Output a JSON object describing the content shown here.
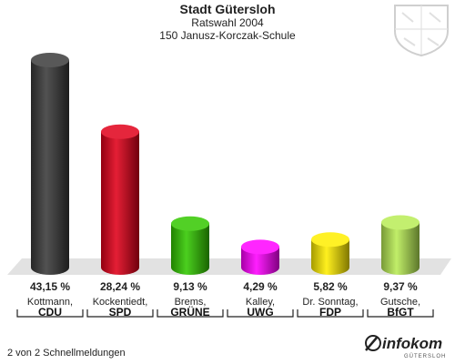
{
  "header": {
    "title": "Stadt Gütersloh",
    "subtitle": "Ratswahl 2004",
    "district": "150 Janusz-Korczak-Schule"
  },
  "footer": {
    "status": "2 von 2 Schnellmeldungen"
  },
  "logo": {
    "brand": "infokom",
    "sub": "GÜTERSLOH"
  },
  "chart_data": {
    "type": "bar",
    "unit": "%",
    "categories": [
      "CDU",
      "SPD",
      "GRÜNE",
      "UWG",
      "FDP",
      "BfGT"
    ],
    "candidates": [
      "Kottmann,",
      "Kockentiedt,",
      "Brems,",
      "Kalley,",
      "Dr. Sonntag,",
      "Gutsche,"
    ],
    "values": [
      43.15,
      28.24,
      9.13,
      4.29,
      5.82,
      9.37
    ],
    "value_labels": [
      "43,15 %",
      "28,24 %",
      "9,13 %",
      "4,29 %",
      "5,82 %",
      "9,37 %"
    ],
    "colors": [
      "#3a3a3a",
      "#e0001a",
      "#33c800",
      "#ff00ff",
      "#ffee00",
      "#b8ec55"
    ],
    "ylim": [
      0,
      43.15
    ]
  }
}
